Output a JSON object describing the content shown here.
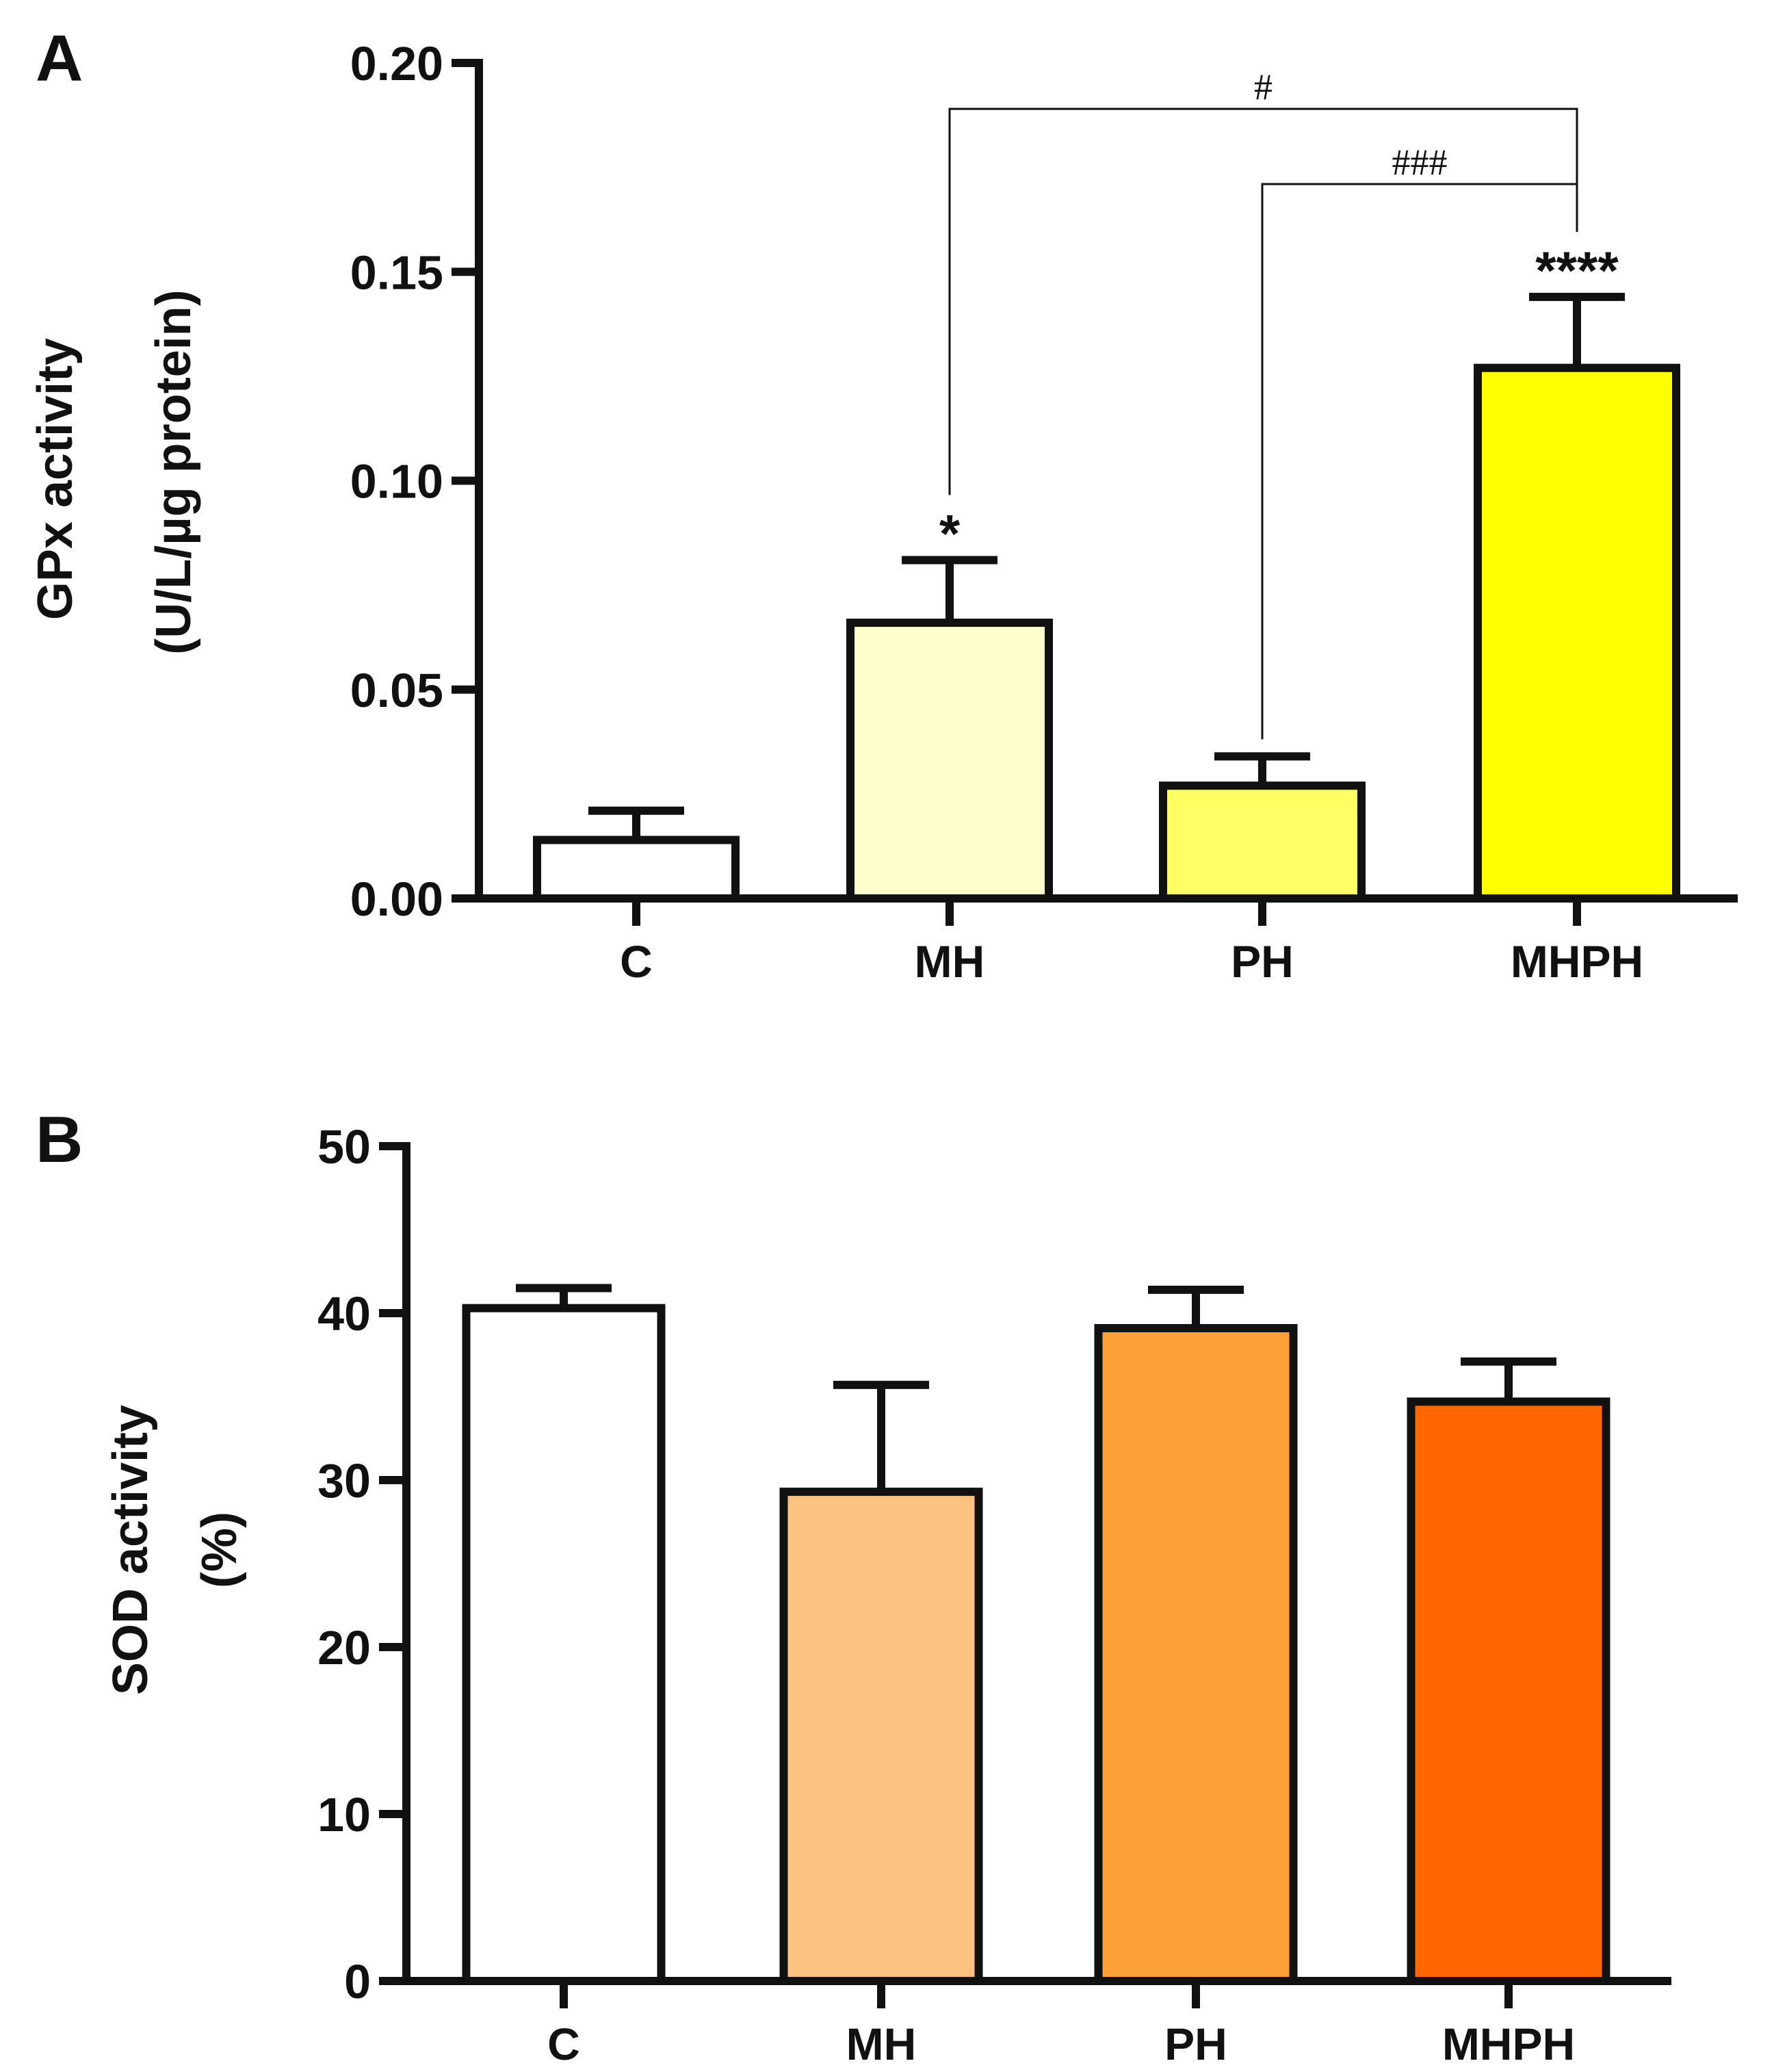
{
  "chart_data": [
    {
      "panel": "A",
      "type": "bar",
      "categories": [
        "C",
        "MH",
        "PH",
        "MHPH"
      ],
      "values": [
        0.014,
        0.066,
        0.027,
        0.127
      ],
      "errors": [
        0.007,
        0.015,
        0.007,
        0.017
      ],
      "colors": [
        "#ffffff",
        "#ffffcc",
        "#ffff66",
        "#ffff00"
      ],
      "ylabel_line1": "GPx activity",
      "ylabel_line2": "(U/L/µg protein)",
      "xlabel": "",
      "ylim": [
        0,
        0.2
      ],
      "yticks": [
        "0.00",
        "0.05",
        "0.10",
        "0.15",
        "0.20"
      ],
      "ytick_values": [
        0,
        0.05,
        0.1,
        0.15,
        0.2
      ],
      "bar_annotations": [
        "",
        "*",
        "",
        "****"
      ],
      "comparisons": [
        {
          "from": 1,
          "to": 3,
          "label": "#",
          "level": 0.189
        },
        {
          "from": 2,
          "to": 3,
          "label": "###",
          "level": 0.171
        }
      ]
    },
    {
      "panel": "B",
      "type": "bar",
      "categories": [
        "C",
        "MH",
        "PH",
        "MHPH"
      ],
      "values": [
        40.3,
        29.3,
        39.1,
        34.7
      ],
      "errors": [
        1.2,
        6.4,
        2.3,
        2.4
      ],
      "colors": [
        "#ffffff",
        "#fdc180",
        "#fea035",
        "#ff6600"
      ],
      "ylabel_line1": "SOD activity",
      "ylabel_line2": "(%)",
      "xlabel": "",
      "ylim": [
        0,
        50
      ],
      "yticks": [
        "0",
        "10",
        "20",
        "30",
        "40",
        "50"
      ],
      "ytick_values": [
        0,
        10,
        20,
        30,
        40,
        50
      ],
      "bar_annotations": [
        "",
        "",
        "",
        ""
      ],
      "comparisons": []
    }
  ]
}
